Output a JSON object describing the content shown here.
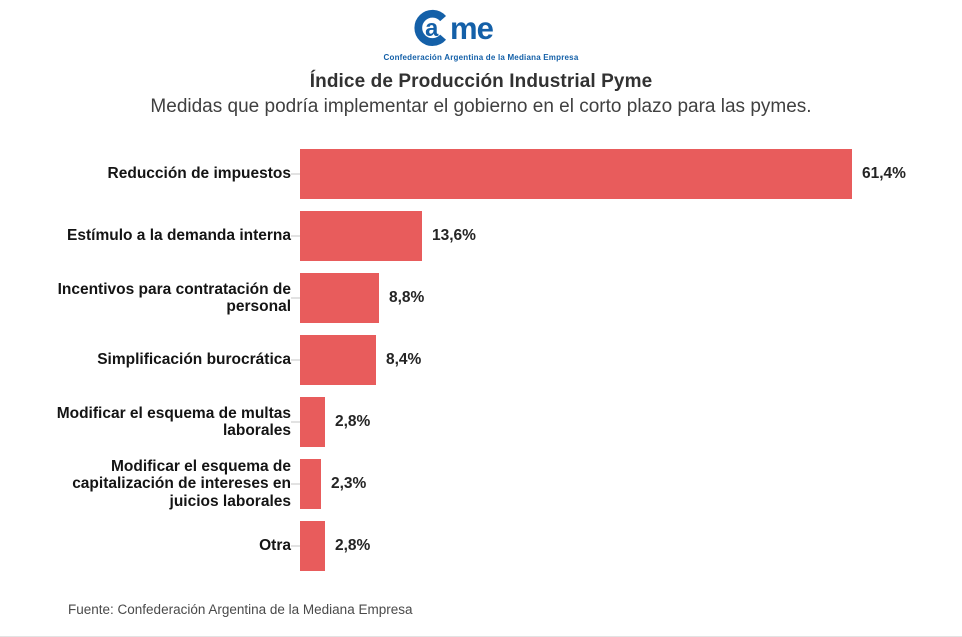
{
  "logo": {
    "name": "CAME",
    "tagline": "Confederación Argentina de la Mediana Empresa",
    "color": "#1460a8"
  },
  "header": {
    "title": "Índice de Producción Industrial Pyme",
    "subtitle": "Medidas que podría implementar el gobierno en el corto plazo para las pymes."
  },
  "footer": {
    "source": "Fuente: Confederación Argentina de la Mediana Empresa"
  },
  "chart_data": {
    "type": "bar",
    "orientation": "horizontal",
    "title": "Índice de Producción Industrial Pyme",
    "subtitle": "Medidas que podría implementar el gobierno en el corto plazo para las pymes.",
    "categories": [
      "Reducción de impuestos",
      "Estímulo a la demanda interna",
      "Incentivos para contratación de personal",
      "Simplificación burocrática",
      "Modificar el esquema de multas laborales",
      "Modificar el esquema de capitalización de intereses en juicios laborales",
      "Otra"
    ],
    "values": [
      61.4,
      13.6,
      8.8,
      8.4,
      2.8,
      2.3,
      2.8
    ],
    "value_labels": [
      "61,4%",
      "13,6%",
      "8,8%",
      "8,4%",
      "2,8%",
      "2,3%",
      "2,8%"
    ],
    "bar_color": "#e85c5c",
    "xlim": [
      0,
      65
    ],
    "grid": false,
    "legend": null,
    "value_label_position": "right-of-bar",
    "source": "Fuente: Confederación Argentina de la Mediana Empresa"
  }
}
